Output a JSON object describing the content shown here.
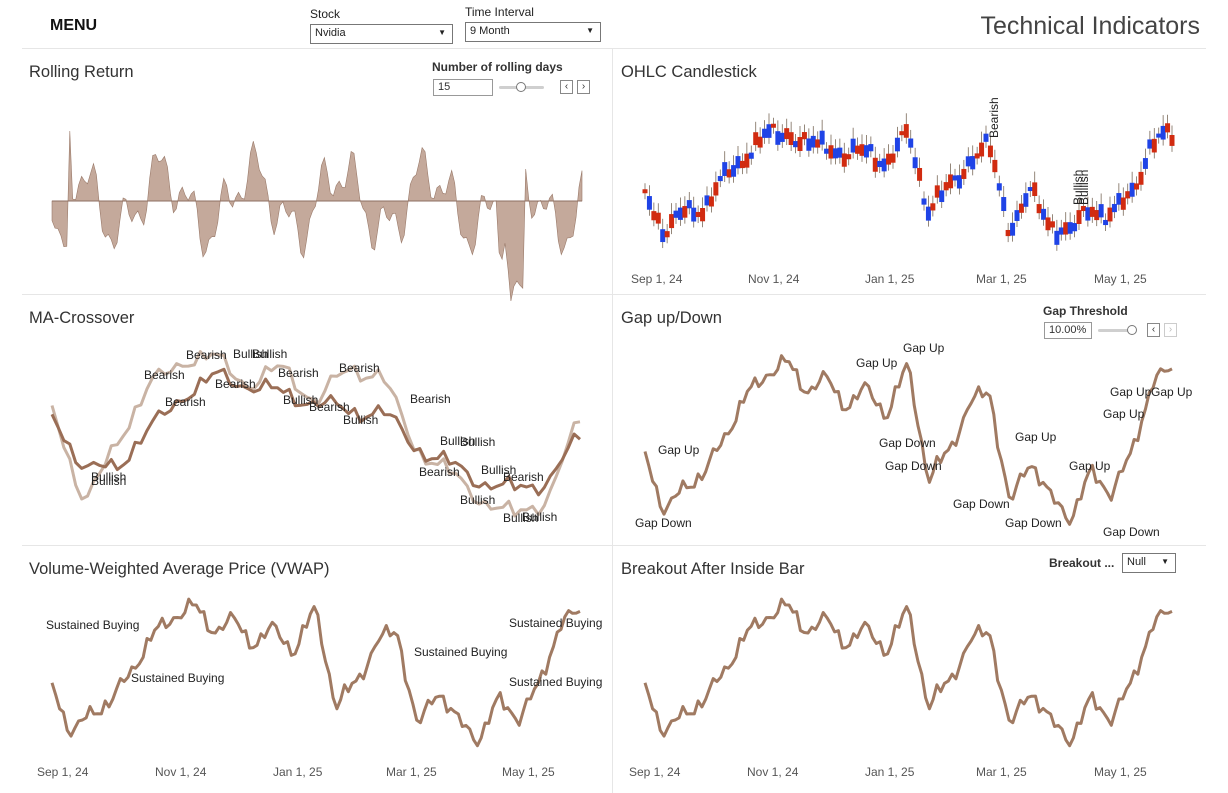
{
  "header": {
    "menu_label": "MENU",
    "stock_label": "Stock",
    "stock_value": "Nvidia",
    "interval_label": "Time Interval",
    "interval_value": "9 Month",
    "title": "Technical Indicators"
  },
  "colors": {
    "brown": "#a07a62",
    "brown_light": "#c9b3a4",
    "area": "#c4a99b",
    "red": "#d12b10",
    "blue": "#1f43e6"
  },
  "x_ticks": [
    "Sep 1, 24",
    "Nov 1, 24",
    "Jan 1, 25",
    "Mar 1, 25",
    "May 1, 25"
  ],
  "panels": {
    "rolling": {
      "title": "Rolling Return",
      "param_label": "Number of rolling days",
      "param_value": "15",
      "prev_icon": "chevron-left-icon",
      "next_icon": "chevron-right-icon"
    },
    "ohlc": {
      "title": "OHLC Candlestick",
      "annotations": [
        "Bearish",
        "Bullish",
        "Bullish"
      ]
    },
    "ma": {
      "title": "MA-Crossover",
      "labels": [
        "Bearish",
        "Bullish",
        "Bullish",
        "Bearish",
        "Bearish",
        "Bearish",
        "Bullish",
        "Bearish",
        "Bullish",
        "Bearish",
        "Bullish",
        "Bearish",
        "Bearish",
        "Bullish",
        "Bullish",
        "Bearish",
        "Bullish",
        "Bearish",
        "Bullish",
        "Bullish",
        "Bullish",
        "Bullish"
      ]
    },
    "gap": {
      "title": "Gap up/Down",
      "param_label": "Gap Threshold",
      "param_value": "10.00%",
      "labels": [
        "Gap Up",
        "Gap Up",
        "Gap Up",
        "Gap Down",
        "Gap Down",
        "Gap Up",
        "Gap Up",
        "Gap Up",
        "Gap Up",
        "Gap Up",
        "Gap Down",
        "Gap Down",
        "Gap Down",
        "Gap Down"
      ]
    },
    "vwap": {
      "title": "Volume-Weighted Average Price (VWAP)",
      "labels": [
        "Sustained Buying",
        "Sustained Buying",
        "Sustained Buying",
        "Sustained Buying",
        "Sustained Buying"
      ]
    },
    "breakout": {
      "title": "Breakout After Inside Bar",
      "param_label": "Breakout ...",
      "param_value": "Null"
    }
  }
}
